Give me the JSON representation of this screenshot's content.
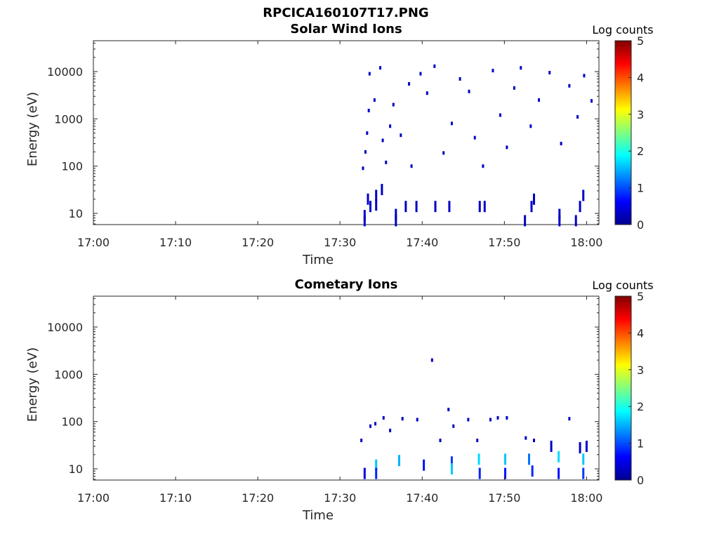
{
  "figure": {
    "title": "RPCICA160107T17.PNG",
    "background": "#ffffff"
  },
  "chart_data": [
    {
      "type": "heatmap",
      "title": "Solar Wind Ions",
      "xlabel": "Time",
      "ylabel": "Energy (eV)",
      "x_ticks": [
        "17:00",
        "17:10",
        "17:20",
        "17:30",
        "17:40",
        "17:50",
        "18:00"
      ],
      "y_ticks": [
        "10",
        "100",
        "1000",
        "10000"
      ],
      "y_scale": "log",
      "ylim": [
        5.8,
        45000
      ],
      "xlim_minutes": [
        0,
        61.5
      ],
      "colorbar": {
        "label": "Log counts",
        "ticks": [
          "0",
          "1",
          "2",
          "3",
          "4",
          "5"
        ],
        "range": [
          0,
          5
        ],
        "colormap": "jet"
      },
      "data_start_minute": 32.5,
      "grid": false,
      "cells": [
        {
          "t": 33.0,
          "e": 7.0,
          "v": 0.3
        },
        {
          "t": 33.0,
          "e": 9.0,
          "v": 0.3
        },
        {
          "t": 33.4,
          "e": 20.0,
          "v": 0.3
        },
        {
          "t": 33.7,
          "e": 14.0,
          "v": 0.3
        },
        {
          "t": 34.4,
          "e": 15.0,
          "v": 0.3
        },
        {
          "t": 34.4,
          "e": 24.0,
          "v": 0.3
        },
        {
          "t": 35.1,
          "e": 32.0,
          "v": 0.3
        },
        {
          "t": 36.8,
          "e": 7.0,
          "v": 0.3
        },
        {
          "t": 36.8,
          "e": 9.5,
          "v": 0.3
        },
        {
          "t": 38.0,
          "e": 14.0,
          "v": 0.3
        },
        {
          "t": 39.3,
          "e": 14.0,
          "v": 0.3
        },
        {
          "t": 41.6,
          "e": 14.0,
          "v": 0.3
        },
        {
          "t": 43.3,
          "e": 14.0,
          "v": 0.3
        },
        {
          "t": 47.0,
          "e": 14.0,
          "v": 0.3
        },
        {
          "t": 47.6,
          "e": 14.0,
          "v": 0.3
        },
        {
          "t": 52.5,
          "e": 7.0,
          "v": 0.3
        },
        {
          "t": 53.3,
          "e": 14.0,
          "v": 0.3
        },
        {
          "t": 53.6,
          "e": 20.0,
          "v": 0.3
        },
        {
          "t": 56.7,
          "e": 7.0,
          "v": 0.3
        },
        {
          "t": 56.7,
          "e": 9.5,
          "v": 0.3
        },
        {
          "t": 58.7,
          "e": 7.0,
          "v": 0.3
        },
        {
          "t": 59.2,
          "e": 14.0,
          "v": 0.3
        },
        {
          "t": 59.6,
          "e": 24.0,
          "v": 0.3
        },
        {
          "t": 32.8,
          "e": 90,
          "v": 0.3
        },
        {
          "t": 33.1,
          "e": 200,
          "v": 0.3
        },
        {
          "t": 33.3,
          "e": 500,
          "v": 0.3
        },
        {
          "t": 33.5,
          "e": 1500,
          "v": 0.3
        },
        {
          "t": 33.6,
          "e": 9000,
          "v": 0.3
        },
        {
          "t": 34.2,
          "e": 2500,
          "v": 0.3
        },
        {
          "t": 34.9,
          "e": 12000,
          "v": 0.3
        },
        {
          "t": 35.2,
          "e": 350,
          "v": 0.3
        },
        {
          "t": 35.6,
          "e": 120,
          "v": 0.3
        },
        {
          "t": 36.1,
          "e": 700,
          "v": 0.3
        },
        {
          "t": 36.5,
          "e": 2000,
          "v": 0.3
        },
        {
          "t": 37.4,
          "e": 450,
          "v": 0.3
        },
        {
          "t": 38.4,
          "e": 5500,
          "v": 0.3
        },
        {
          "t": 38.7,
          "e": 100,
          "v": 0.3
        },
        {
          "t": 39.8,
          "e": 9000,
          "v": 0.3
        },
        {
          "t": 40.6,
          "e": 3500,
          "v": 0.3
        },
        {
          "t": 41.5,
          "e": 13000,
          "v": 0.3
        },
        {
          "t": 42.6,
          "e": 190,
          "v": 0.3
        },
        {
          "t": 43.6,
          "e": 800,
          "v": 0.3
        },
        {
          "t": 44.6,
          "e": 7000,
          "v": 0.3
        },
        {
          "t": 45.7,
          "e": 3800,
          "v": 0.3
        },
        {
          "t": 46.4,
          "e": 400,
          "v": 0.3
        },
        {
          "t": 47.4,
          "e": 100,
          "v": 0.3
        },
        {
          "t": 48.6,
          "e": 10500,
          "v": 0.3
        },
        {
          "t": 49.5,
          "e": 1200,
          "v": 0.3
        },
        {
          "t": 50.3,
          "e": 250,
          "v": 0.3
        },
        {
          "t": 51.2,
          "e": 4500,
          "v": 0.3
        },
        {
          "t": 52.0,
          "e": 12000,
          "v": 0.3
        },
        {
          "t": 53.2,
          "e": 700,
          "v": 0.3
        },
        {
          "t": 54.2,
          "e": 2500,
          "v": 0.3
        },
        {
          "t": 55.5,
          "e": 9500,
          "v": 0.3
        },
        {
          "t": 56.9,
          "e": 300,
          "v": 0.3
        },
        {
          "t": 57.9,
          "e": 5000,
          "v": 0.3
        },
        {
          "t": 58.9,
          "e": 1100,
          "v": 0.3
        },
        {
          "t": 59.7,
          "e": 8200,
          "v": 0.3
        },
        {
          "t": 60.6,
          "e": 2400,
          "v": 0.3
        }
      ]
    },
    {
      "type": "heatmap",
      "title": "Cometary Ions",
      "xlabel": "Time",
      "ylabel": "Energy (eV)",
      "x_ticks": [
        "17:00",
        "17:10",
        "17:20",
        "17:30",
        "17:40",
        "17:50",
        "18:00"
      ],
      "y_ticks": [
        "10",
        "100",
        "1000",
        "10000"
      ],
      "y_scale": "log",
      "ylim": [
        5.8,
        45000
      ],
      "xlim_minutes": [
        0,
        61.5
      ],
      "colorbar": {
        "label": "Log counts",
        "ticks": [
          "0",
          "1",
          "2",
          "3",
          "4",
          "5"
        ],
        "range": [
          0,
          5
        ],
        "colormap": "jet"
      },
      "grid": false,
      "cells": [
        {
          "t": 32.6,
          "e": 40,
          "v": 0.3
        },
        {
          "t": 33.7,
          "e": 80,
          "v": 0.3
        },
        {
          "t": 34.3,
          "e": 90,
          "v": 0.3
        },
        {
          "t": 35.3,
          "e": 120,
          "v": 0.3
        },
        {
          "t": 36.1,
          "e": 65,
          "v": 0.3
        },
        {
          "t": 37.6,
          "e": 115,
          "v": 0.3
        },
        {
          "t": 39.4,
          "e": 110,
          "v": 0.3
        },
        {
          "t": 41.2,
          "e": 2000,
          "v": 0.3
        },
        {
          "t": 42.2,
          "e": 40,
          "v": 0.3
        },
        {
          "t": 43.2,
          "e": 180,
          "v": 0.3
        },
        {
          "t": 43.8,
          "e": 80,
          "v": 0.3
        },
        {
          "t": 45.6,
          "e": 110,
          "v": 0.3
        },
        {
          "t": 46.7,
          "e": 40,
          "v": 0.3
        },
        {
          "t": 48.3,
          "e": 110,
          "v": 0.3
        },
        {
          "t": 49.2,
          "e": 120,
          "v": 0.3
        },
        {
          "t": 50.3,
          "e": 120,
          "v": 0.3
        },
        {
          "t": 52.6,
          "e": 45,
          "v": 0.3
        },
        {
          "t": 53.6,
          "e": 40,
          "v": 0.3
        },
        {
          "t": 55.7,
          "e": 30,
          "v": 0.3
        },
        {
          "t": 57.9,
          "e": 115,
          "v": 0.3
        },
        {
          "t": 59.2,
          "e": 28,
          "v": 0.3
        },
        {
          "t": 60.0,
          "e": 30,
          "v": 0.3
        },
        {
          "t": 33.0,
          "e": 8,
          "v": 0.5
        },
        {
          "t": 34.4,
          "e": 12,
          "v": 1.6
        },
        {
          "t": 34.4,
          "e": 8,
          "v": 0.8
        },
        {
          "t": 37.2,
          "e": 15,
          "v": 1.5
        },
        {
          "t": 40.2,
          "e": 12,
          "v": 0.7
        },
        {
          "t": 43.6,
          "e": 14,
          "v": 0.9
        },
        {
          "t": 43.6,
          "e": 10,
          "v": 1.6
        },
        {
          "t": 46.9,
          "e": 16,
          "v": 1.7
        },
        {
          "t": 47.0,
          "e": 8,
          "v": 0.8
        },
        {
          "t": 50.1,
          "e": 16,
          "v": 1.6
        },
        {
          "t": 50.1,
          "e": 8,
          "v": 0.7
        },
        {
          "t": 53.0,
          "e": 16,
          "v": 1.2
        },
        {
          "t": 53.4,
          "e": 9,
          "v": 0.8
        },
        {
          "t": 56.6,
          "e": 18,
          "v": 1.7
        },
        {
          "t": 56.6,
          "e": 8,
          "v": 0.7
        },
        {
          "t": 59.6,
          "e": 16,
          "v": 1.6
        },
        {
          "t": 59.6,
          "e": 8,
          "v": 0.9
        }
      ]
    }
  ]
}
